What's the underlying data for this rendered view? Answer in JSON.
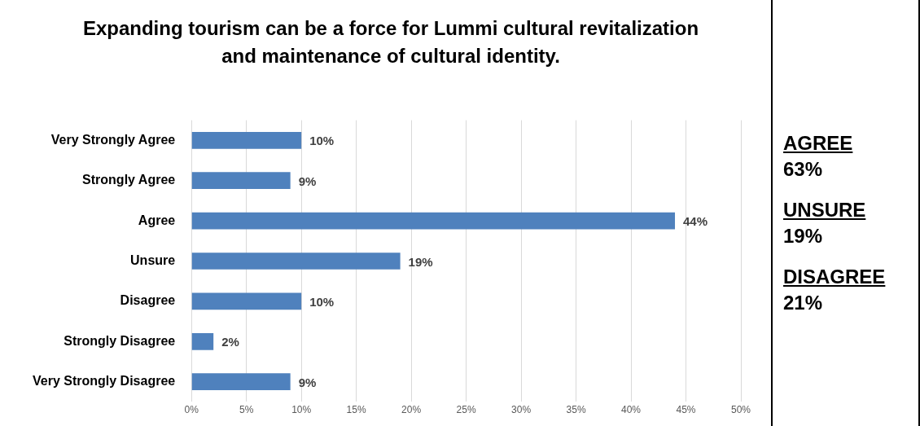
{
  "chart_data": {
    "type": "bar",
    "orientation": "horizontal",
    "title": "Expanding tourism can be a force for Lummi cultural revitalization and maintenance of cultural identity.",
    "categories": [
      "Very Strongly Agree",
      "Strongly Agree",
      "Agree",
      "Unsure",
      "Disagree",
      "Strongly Disagree",
      "Very Strongly Disagree"
    ],
    "values": [
      10,
      9,
      44,
      19,
      10,
      2,
      9
    ],
    "value_labels": [
      "10%",
      "9%",
      "44%",
      "19%",
      "10%",
      "2%",
      "9%"
    ],
    "color": "#4f81bd",
    "xlim": [
      0,
      50
    ],
    "xticks": [
      {
        "value": 0,
        "label": "0%"
      },
      {
        "value": 5,
        "label": "5%"
      },
      {
        "value": 10,
        "label": "10%"
      },
      {
        "value": 15,
        "label": "15%"
      },
      {
        "value": 20,
        "label": "20%"
      },
      {
        "value": 25,
        "label": "25%"
      },
      {
        "value": 30,
        "label": "30%"
      },
      {
        "value": 35,
        "label": "35%"
      },
      {
        "value": 40,
        "label": "40%"
      },
      {
        "value": 45,
        "label": "45%"
      },
      {
        "value": 50,
        "label": "50%"
      }
    ],
    "grid": "x",
    "legend": false,
    "annotations": [
      "AGREE",
      "63%",
      "UNSURE",
      "19%",
      "DISAGREE",
      "21%"
    ]
  }
}
